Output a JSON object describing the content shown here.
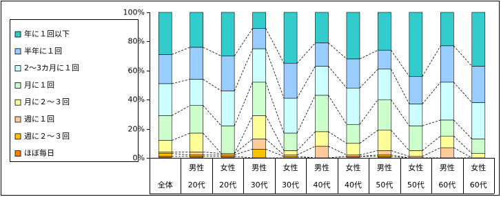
{
  "chart_data": {
    "type": "stacked_bar",
    "categories": [
      [
        "全体"
      ],
      [
        "男性",
        "20代"
      ],
      [
        "女性",
        "20代"
      ],
      [
        "男性",
        "30代"
      ],
      [
        "女性",
        "30代"
      ],
      [
        "男性",
        "40代"
      ],
      [
        "女性",
        "40代"
      ],
      [
        "男性",
        "50代"
      ],
      [
        "女性",
        "50代"
      ],
      [
        "男性",
        "60代"
      ],
      [
        "女性",
        "60代"
      ]
    ],
    "series": [
      {
        "name": "ほぼ毎日",
        "color": "#ff8000",
        "values": [
          1,
          1,
          1,
          0,
          0,
          0,
          1,
          1,
          0,
          0,
          0
        ]
      },
      {
        "name": "週に２～３回",
        "color": "#ffc000",
        "values": [
          2,
          1,
          1,
          6,
          1,
          0,
          0,
          1,
          0,
          0,
          0
        ]
      },
      {
        "name": "週に１回",
        "color": "#ffcc99",
        "values": [
          1,
          2,
          1,
          7,
          1,
          8,
          1,
          3,
          1,
          7,
          0
        ]
      },
      {
        "name": "月に２～３回",
        "color": "#ffff99",
        "values": [
          8,
          13,
          0,
          16,
          3,
          10,
          8,
          14,
          4,
          8,
          3
        ]
      },
      {
        "name": "月に１回",
        "color": "#ccffcc",
        "values": [
          17,
          19,
          19,
          23,
          12,
          25,
          13,
          21,
          17,
          11,
          10
        ]
      },
      {
        "name": "2～3カ月に１回",
        "color": "#ccffff",
        "values": [
          22,
          18,
          24,
          23,
          24,
          20,
          25,
          21,
          15,
          26,
          25
        ]
      },
      {
        "name": "半年に１回",
        "color": "#99ccff",
        "values": [
          20,
          22,
          24,
          14,
          24,
          16,
          20,
          13,
          19,
          25,
          25
        ]
      },
      {
        "name": "年に１回以下",
        "color": "#33cccc",
        "values": [
          29,
          24,
          30,
          11,
          35,
          21,
          32,
          26,
          44,
          23,
          37
        ]
      }
    ],
    "ylim": [
      0,
      100
    ],
    "yticks": [
      {
        "value": 0,
        "label": "0%"
      },
      {
        "value": 20,
        "label": "20%"
      },
      {
        "value": 40,
        "label": "40%"
      },
      {
        "value": 60,
        "label": "60%"
      },
      {
        "value": 80,
        "label": "80%"
      },
      {
        "value": 100,
        "label": "100%"
      }
    ],
    "legend": "left",
    "series_lines": true
  }
}
